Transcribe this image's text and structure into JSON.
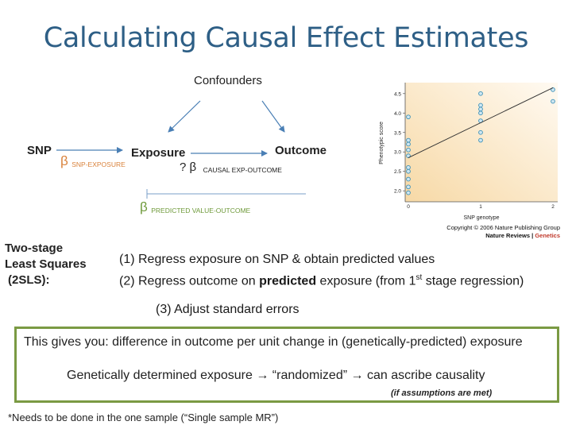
{
  "title": "Calculating Causal Effect Estimates",
  "diagram": {
    "confounders": "Confounders",
    "snp": "SNP",
    "exposure": "Exposure",
    "outcome": "Outcome",
    "beta_snp_exposure": {
      "symbol": "β",
      "subscript": "SNP-EXPOSURE"
    },
    "beta_causal": {
      "prefix": "? β",
      "subscript": "CAUSAL EXP-OUTCOME"
    },
    "beta_predicted": {
      "symbol": "β",
      "subscript": "PREDICTED VALUE-OUTCOME"
    },
    "colors": {
      "arrow": "#4a7fb5",
      "beta_orange": "#d9823b",
      "beta_green": "#6f9a3b",
      "line": "#7a9fc8"
    }
  },
  "inset_chart": {
    "chart_data": {
      "type": "scatter",
      "title": "",
      "xlabel": "SNP genotype",
      "ylabel": "Phenotypic score",
      "x_ticks": [
        "0",
        "1",
        "2"
      ],
      "y_ticks": [
        "2.0",
        "2.5",
        "3.0",
        "3.5",
        "4.0",
        "4.5"
      ],
      "xlim": [
        0,
        2
      ],
      "ylim": [
        1.8,
        4.7
      ],
      "points": [
        {
          "x": 0,
          "y": 3.9
        },
        {
          "x": 0,
          "y": 3.3
        },
        {
          "x": 0,
          "y": 3.2
        },
        {
          "x": 0,
          "y": 3.05
        },
        {
          "x": 0,
          "y": 2.9
        },
        {
          "x": 0,
          "y": 2.6
        },
        {
          "x": 0,
          "y": 2.5
        },
        {
          "x": 0,
          "y": 2.3
        },
        {
          "x": 0,
          "y": 2.1
        },
        {
          "x": 0,
          "y": 1.95
        },
        {
          "x": 1,
          "y": 4.5
        },
        {
          "x": 1,
          "y": 4.2
        },
        {
          "x": 1,
          "y": 4.1
        },
        {
          "x": 1,
          "y": 4.0
        },
        {
          "x": 1,
          "y": 3.8
        },
        {
          "x": 1,
          "y": 3.5
        },
        {
          "x": 1,
          "y": 3.3
        },
        {
          "x": 2,
          "y": 4.6
        },
        {
          "x": 2,
          "y": 4.3
        }
      ],
      "fit_line": [
        {
          "x": 0,
          "y": 2.85
        },
        {
          "x": 2,
          "y": 4.65
        }
      ],
      "grid": false
    },
    "credit_line1": "Copyright © 2006 Nature Publishing Group",
    "credit_line2": "Nature Reviews | ",
    "credit_genetics": "Genetics"
  },
  "method": {
    "label_line1": "Two-stage",
    "label_line2": "Least Squares",
    "label_line3": "(2SLS):",
    "step1": "(1) Regress exposure on SNP & obtain predicted values",
    "step2_pre": "(2) Regress outcome on ",
    "step2_bold": "predicted",
    "step2_mid": " exposure (from 1",
    "step2_sup": "st",
    "step2_post": " stage regression)",
    "step3": "(3) Adjust standard errors"
  },
  "callout": {
    "line1": "This gives you: difference in outcome per unit change in (genetically-predicted) exposure",
    "line2": "Genetically determined exposure → “randomized” → can ascribe causality",
    "line3": "(if assumptions are met)"
  },
  "footnote": "*Needs to be done in the one sample (“Single sample MR”)"
}
